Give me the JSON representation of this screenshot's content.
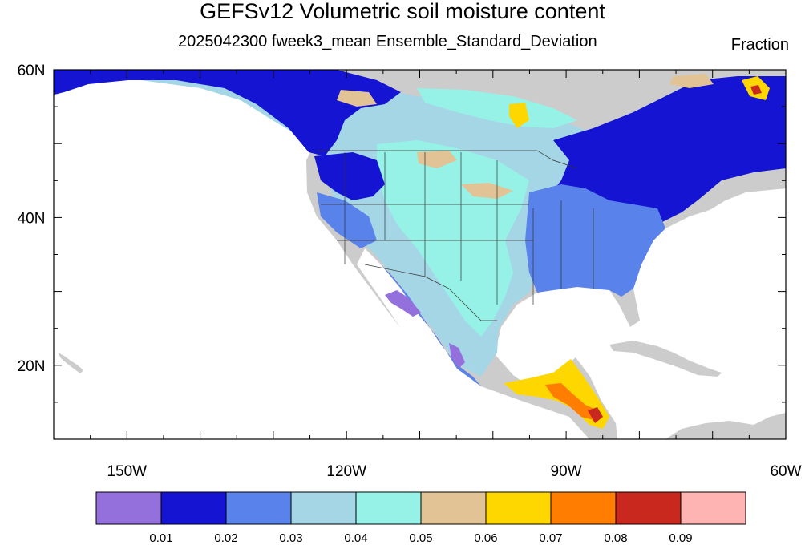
{
  "title": "GEFSv12 Volumetric soil moisture content",
  "subtitle": "2025042300 fweek3_mean Ensemble_Standard_Deviation",
  "units": "Fraction",
  "map": {
    "lon_range": [
      -160,
      -60
    ],
    "lat_range": [
      10,
      60
    ],
    "lon_ticks": [
      {
        "value": -150,
        "label": "150W"
      },
      {
        "value": -120,
        "label": "120W"
      },
      {
        "value": -90,
        "label": "90W"
      },
      {
        "value": -60,
        "label": "60W"
      }
    ],
    "lat_ticks": [
      {
        "value": 60,
        "label": "60N"
      },
      {
        "value": 40,
        "label": "40N"
      },
      {
        "value": 20,
        "label": "20N"
      }
    ],
    "land_color": "#cccccc",
    "ocean_color": "#ffffff"
  },
  "colorbar": {
    "colors": [
      "#9370db",
      "#1414d2",
      "#5a82eb",
      "#a5d6e6",
      "#96f2e6",
      "#e1c396",
      "#ffd700",
      "#ff7d00",
      "#c8281e",
      "#ffb4b4"
    ],
    "labels": [
      "0.01",
      "0.02",
      "0.03",
      "0.04",
      "0.05",
      "0.06",
      "0.07",
      "0.08",
      "0.09"
    ]
  }
}
